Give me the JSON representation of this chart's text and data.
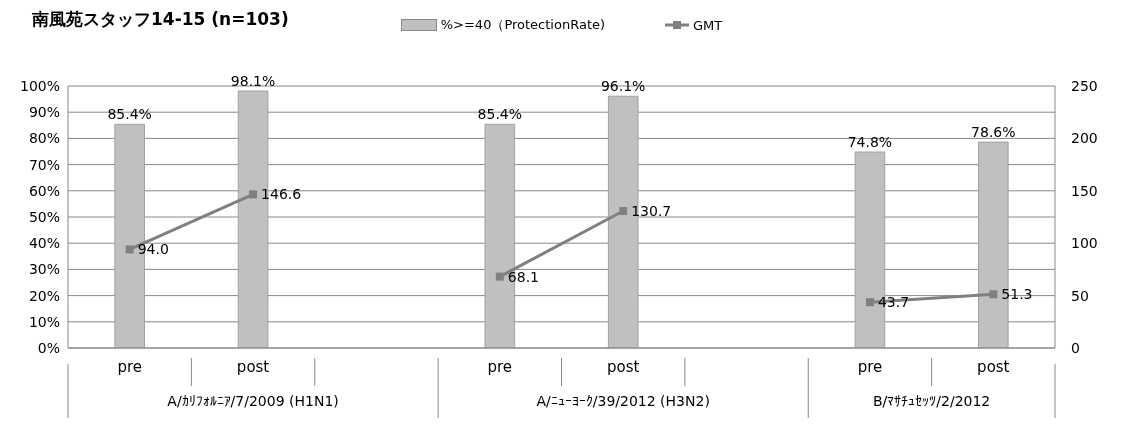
{
  "chart_data": {
    "type": "bar",
    "title": "南風苑スタッフ14-15 (n=103)",
    "categories": [
      "pre",
      "post",
      null,
      "pre",
      "post",
      null,
      "pre",
      "post"
    ],
    "annotations": [
      "A/ｶﾘﾌｫﾙﾆｱ/7/2009 (H1N1)",
      "A/ﾆｭｰﾖｰｸ/39/2012 (H3N2)",
      "B/ﾏｻﾁｭｾｯﾂ/2/2012"
    ],
    "series": [
      {
        "name": "%>=40（ProtectionRate)",
        "color": "#c0c0c0",
        "values": [
          85.4,
          98.1,
          null,
          85.4,
          96.1,
          null,
          74.8,
          78.6
        ],
        "value_labels": [
          "85.4%",
          "98.1%",
          null,
          "85.4%",
          "96.1%",
          null,
          "74.8%",
          "78.6%"
        ]
      },
      {
        "name": "GMT",
        "type": "line",
        "axis": "y2",
        "color": "#808080",
        "marker": "square",
        "values": [
          94.0,
          146.6,
          null,
          68.1,
          130.7,
          null,
          43.7,
          51.3
        ],
        "value_labels": [
          "94.0",
          "146.6",
          null,
          "68.1",
          "130.7",
          null,
          "43.7",
          "51.3"
        ]
      }
    ],
    "ylim": [
      0,
      100
    ],
    "yticks": [
      {
        "value": 0,
        "label": "0%"
      },
      {
        "value": 10,
        "label": "10%"
      },
      {
        "value": 20,
        "label": "20%"
      },
      {
        "value": 30,
        "label": "30%"
      },
      {
        "value": 40,
        "label": "40%"
      },
      {
        "value": 50,
        "label": "50%"
      },
      {
        "value": 60,
        "label": "60%"
      },
      {
        "value": 70,
        "label": "70%"
      },
      {
        "value": 80,
        "label": "80%"
      },
      {
        "value": 90,
        "label": "90%"
      },
      {
        "value": 100,
        "label": "100%"
      }
    ],
    "y2lim": [
      0,
      250
    ],
    "y2ticks": [
      0,
      50,
      100,
      150,
      200,
      250
    ],
    "grid": "y",
    "legend": "top"
  }
}
